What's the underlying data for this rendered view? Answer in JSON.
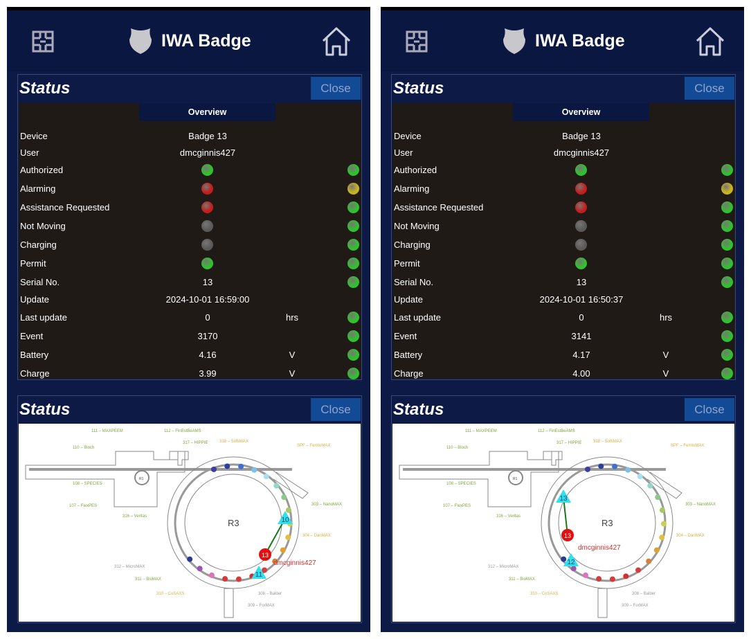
{
  "colors": {
    "green": "#2fc22f",
    "red": "#c41d1d",
    "gray": "#5a5a5a",
    "yellow": "#c9b520"
  },
  "map_labels": [
    "111 – MAXPEEM",
    "112 – FinEstBeAMS",
    "110 – Bloch",
    "317 – HIPPIE",
    "318 – SoftiMAX",
    "SPF – FemtoMAX",
    "108 – SPECIES",
    "107 – FlexPES",
    "316 – Veritas",
    "303 – NanoMAX",
    "304 – DanMAX",
    "312 – MicroMAX",
    "311 – BioMAX",
    "310 – CoSAXS",
    "308 – Balder",
    "309 – ForMAX",
    "R3",
    "R1"
  ],
  "ring_colors": [
    "#3a3fa0",
    "#2b3f9e",
    "#3f6fd0",
    "#7dbfe8",
    "#a9dff0",
    "#8fd8c8",
    "#8cc88c",
    "#a8c860",
    "#c8d050",
    "#e0c040",
    "#e0a030",
    "#d08040",
    "#d04040",
    "#d03030",
    "#d83a3a",
    "#d03c3c",
    "#e070c0",
    "#9a55b0",
    "#2a3a90"
  ],
  "panels": [
    {
      "header": {
        "title": "IWA Badge",
        "app_icon": "maze-icon",
        "badge_icon": "shield-icon",
        "home_icon": "home-icon"
      },
      "status": {
        "title": "Status",
        "close": "Close",
        "overview": "Overview",
        "rows": [
          {
            "label": "Device",
            "value": "Badge 13"
          },
          {
            "label": "User",
            "value": "dmcginnis427"
          },
          {
            "label": "Authorized",
            "mid": "green",
            "side": "green"
          },
          {
            "label": "Alarming",
            "mid": "red",
            "side": "yellow"
          },
          {
            "label": "Assistance Requested",
            "mid": "red",
            "side": "green"
          },
          {
            "label": "Not Moving",
            "mid": "gray",
            "side": "green"
          },
          {
            "label": "Charging",
            "mid": "gray",
            "side": "green"
          },
          {
            "label": "Permit",
            "mid": "green",
            "side": "green"
          },
          {
            "label": "Serial No.",
            "value": "13",
            "side": "green"
          },
          {
            "label": "Update",
            "value": "2024-10-01 16:59:00"
          },
          {
            "label": "Last update",
            "value": "0",
            "unit": "hrs",
            "side": "green"
          },
          {
            "label": "Event",
            "value": "3170",
            "side": "green"
          },
          {
            "label": "Battery",
            "value": "4.16",
            "unit": "V",
            "side": "green"
          },
          {
            "label": "Charge",
            "value": "3.99",
            "unit": "V",
            "side": "green"
          }
        ]
      },
      "map": {
        "title": "Status",
        "close": "Close",
        "user_label": "dmcginnis427",
        "markers": [
          {
            "label": "10",
            "kind": "anchor"
          },
          {
            "label": "13",
            "kind": "badge"
          },
          {
            "label": "11",
            "kind": "anchor"
          }
        ]
      }
    },
    {
      "header": {
        "title": "IWA Badge",
        "app_icon": "maze-icon",
        "badge_icon": "shield-icon",
        "home_icon": "home-icon"
      },
      "status": {
        "title": "Status",
        "close": "Close",
        "overview": "Overview",
        "rows": [
          {
            "label": "Device",
            "value": "Badge 13"
          },
          {
            "label": "User",
            "value": "dmcginnis427"
          },
          {
            "label": "Authorized",
            "mid": "green",
            "side": "green"
          },
          {
            "label": "Alarming",
            "mid": "red",
            "side": "yellow"
          },
          {
            "label": "Assistance Requested",
            "mid": "red",
            "side": "green"
          },
          {
            "label": "Not Moving",
            "mid": "gray",
            "side": "green"
          },
          {
            "label": "Charging",
            "mid": "gray",
            "side": "green"
          },
          {
            "label": "Permit",
            "mid": "green",
            "side": "green"
          },
          {
            "label": "Serial No.",
            "value": "13",
            "side": "green"
          },
          {
            "label": "Update",
            "value": "2024-10-01 16:50:37"
          },
          {
            "label": "Last update",
            "value": "0",
            "unit": "hrs",
            "side": "green"
          },
          {
            "label": "Event",
            "value": "3141",
            "side": "green"
          },
          {
            "label": "Battery",
            "value": "4.17",
            "unit": "V",
            "side": "green"
          },
          {
            "label": "Charge",
            "value": "4.00",
            "unit": "V",
            "side": "green"
          }
        ]
      },
      "map": {
        "title": "Status",
        "close": "Close",
        "user_label": "dmcginnis427",
        "markers": [
          {
            "label": "13",
            "kind": "anchor"
          },
          {
            "label": "13",
            "kind": "badge"
          },
          {
            "label": "12",
            "kind": "anchor"
          }
        ]
      }
    }
  ]
}
